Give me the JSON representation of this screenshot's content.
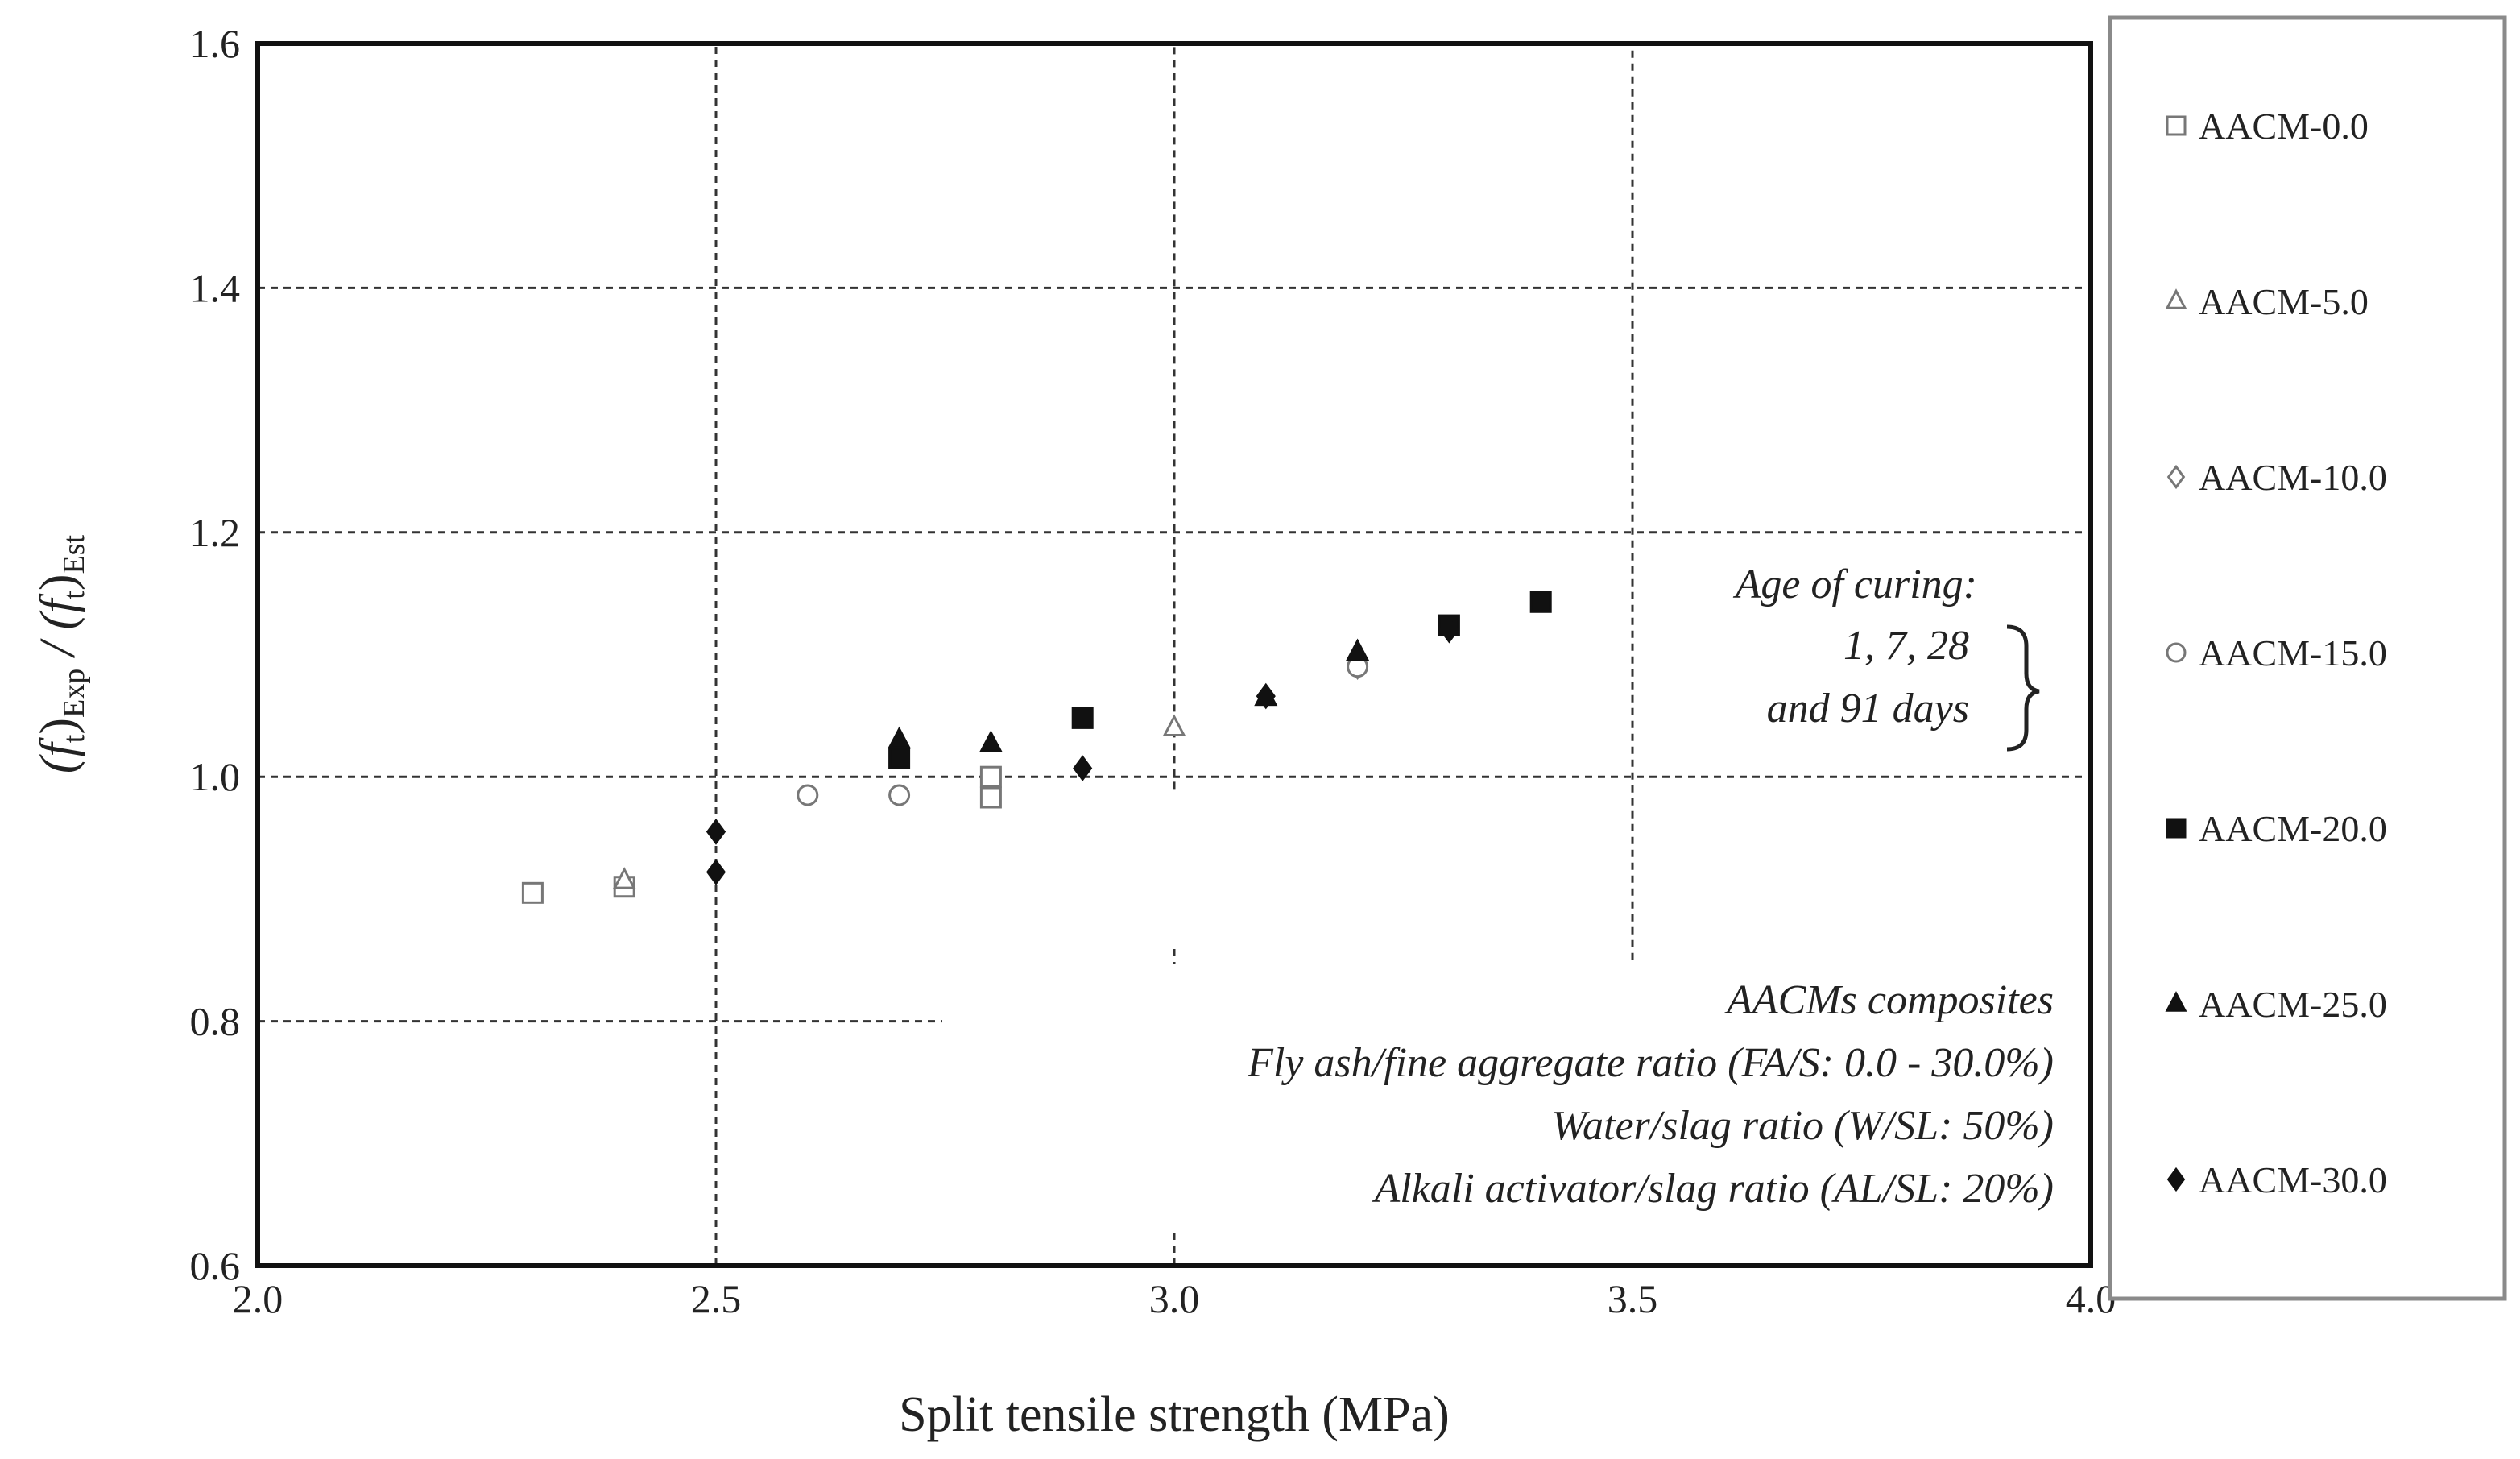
{
  "chart_data": {
    "type": "scatter",
    "title": "",
    "xlabel": "Split tensile strength (MPa)",
    "ylabel": {
      "main": "(f",
      "sub1": "t",
      "close1": ")",
      "sub2": "Exp",
      "mid": " / (f",
      "sub3": "t",
      "close2": ")",
      "sub4": "Est"
    },
    "xlim": [
      2.0,
      4.0
    ],
    "ylim": [
      0.6,
      1.6
    ],
    "x_ticks": [
      "2.0",
      "2.5",
      "3.0",
      "3.5",
      "4.0"
    ],
    "y_ticks": [
      "0.6",
      "0.8",
      "1.0",
      "1.2",
      "1.4",
      "1.6"
    ],
    "grid": "dashed",
    "legend_position": "right",
    "series": [
      {
        "name": "AACM-0.0",
        "marker": "square-open",
        "points": [
          [
            2.3,
            0.905
          ],
          [
            2.4,
            0.91
          ],
          [
            2.8,
            1.0
          ],
          [
            2.8,
            0.983
          ]
        ]
      },
      {
        "name": "AACM-5.0",
        "marker": "triangle-open",
        "points": [
          [
            2.4,
            0.915
          ],
          [
            3.0,
            1.04
          ],
          [
            3.1,
            1.065
          ]
        ]
      },
      {
        "name": "AACM-10.0",
        "marker": "diamond-open",
        "points": [
          [
            2.5,
            0.955
          ],
          [
            3.2,
            1.09
          ],
          [
            3.3,
            1.12
          ]
        ]
      },
      {
        "name": "AACM-15.0",
        "marker": "circle-open",
        "points": [
          [
            2.6,
            0.985
          ],
          [
            2.7,
            0.985
          ],
          [
            3.2,
            1.09
          ]
        ]
      },
      {
        "name": "AACM-20.0",
        "marker": "square-filled",
        "points": [
          [
            2.7,
            1.015
          ],
          [
            2.9,
            1.048
          ],
          [
            3.3,
            1.124
          ],
          [
            3.4,
            1.143
          ]
        ]
      },
      {
        "name": "AACM-25.0",
        "marker": "triangle-filled",
        "points": [
          [
            2.7,
            1.03
          ],
          [
            2.8,
            1.027
          ],
          [
            3.1,
            1.065
          ],
          [
            3.2,
            1.102
          ]
        ]
      },
      {
        "name": "AACM-30.0",
        "marker": "diamond-filled",
        "points": [
          [
            2.5,
            0.955
          ],
          [
            2.5,
            0.922
          ],
          [
            2.9,
            1.007
          ],
          [
            3.1,
            1.066
          ],
          [
            3.3,
            1.12
          ]
        ]
      }
    ],
    "annotations": {
      "curing": [
        "Age of curing:",
        "1, 7, 28",
        "and 91 days"
      ],
      "composites": [
        "AACMs  composites",
        "Fly ash/fine aggregate ratio (FA/S:  0.0 - 30.0%)",
        "Water/slag ratio (W/SL:  50%)",
        "Alkali activator/slag ratio (AL/SL:  20%)"
      ]
    }
  }
}
